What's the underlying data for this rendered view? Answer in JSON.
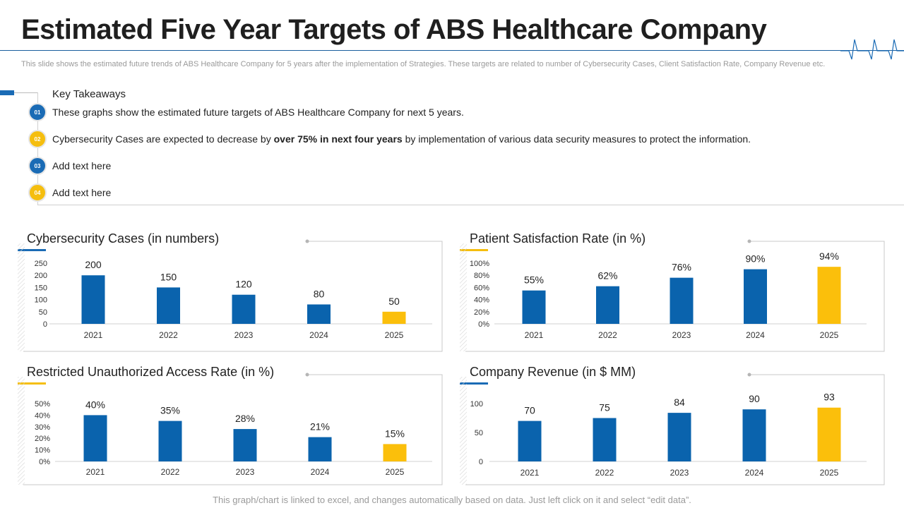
{
  "header": {
    "title": "Estimated Five Year Targets of ABS Healthcare Company",
    "subtitle": "This slide shows the estimated future trends of ABS Healthcare Company for 5 years after the implementation of Strategies. These targets are related to number of Cybersecurity Cases, Client Satisfaction Rate, Company Revenue etc."
  },
  "takeaways": {
    "title": "Key Takeaways",
    "items": [
      {
        "num": "01",
        "text": "These graphs show the estimated future targets of ABS Healthcare Company for next 5 years."
      },
      {
        "num": "02",
        "pre": "Cybersecurity Cases are expected to decrease by ",
        "bold": "over 75% in next four years",
        "post": " by implementation of various data security measures to protect the information."
      },
      {
        "num": "03",
        "text": "Add text here"
      },
      {
        "num": "04",
        "text": "Add text here"
      }
    ]
  },
  "footer": "This graph/chart is linked to excel,  and changes automatically based on data. Just left click on it and select “edit data”.",
  "colors": {
    "blue": "#0a63ad",
    "yellow": "#fbbf0b",
    "accent_blue": "#1a6bb5",
    "accent_yellow": "#f5be0f"
  },
  "chart_data": [
    {
      "type": "bar",
      "title": "Cybersecurity Cases (in numbers)",
      "categories": [
        "2021",
        "2022",
        "2023",
        "2024",
        "2025"
      ],
      "values": [
        200,
        150,
        120,
        80,
        50
      ],
      "labels": [
        "200",
        "150",
        "120",
        "80",
        "50"
      ],
      "ylim": [
        0,
        250
      ],
      "yticks": [
        "250",
        "200",
        "150",
        "100",
        "50",
        "0"
      ],
      "highlight_index": 4
    },
    {
      "type": "bar",
      "title": "Patient Satisfaction Rate (in %)",
      "categories": [
        "2021",
        "2022",
        "2023",
        "2024",
        "2025"
      ],
      "values": [
        55,
        62,
        76,
        90,
        94
      ],
      "labels": [
        "55%",
        "62%",
        "76%",
        "90%",
        "94%"
      ],
      "ylim": [
        0,
        100
      ],
      "yticks": [
        "100%",
        "80%",
        "60%",
        "40%",
        "20%",
        "0%"
      ],
      "highlight_index": 4
    },
    {
      "type": "bar",
      "title": "Restricted Unauthorized Access Rate (in %)",
      "categories": [
        "2021",
        "2022",
        "2023",
        "2024",
        "2025"
      ],
      "values": [
        40,
        35,
        28,
        21,
        15
      ],
      "labels": [
        "40%",
        "35%",
        "28%",
        "21%",
        "15%"
      ],
      "ylim": [
        0,
        50
      ],
      "yticks": [
        "50%",
        "40%",
        "30%",
        "20%",
        "10%",
        "0%"
      ],
      "highlight_index": 4
    },
    {
      "type": "bar",
      "title": "Company Revenue (in $ MM)",
      "categories": [
        "2021",
        "2022",
        "2023",
        "2024",
        "2025"
      ],
      "values": [
        70,
        75,
        84,
        90,
        93
      ],
      "labels": [
        "70",
        "75",
        "84",
        "90",
        "93"
      ],
      "ylim": [
        0,
        100
      ],
      "yticks": [
        "100",
        "50",
        "0"
      ],
      "highlight_index": 4
    }
  ]
}
